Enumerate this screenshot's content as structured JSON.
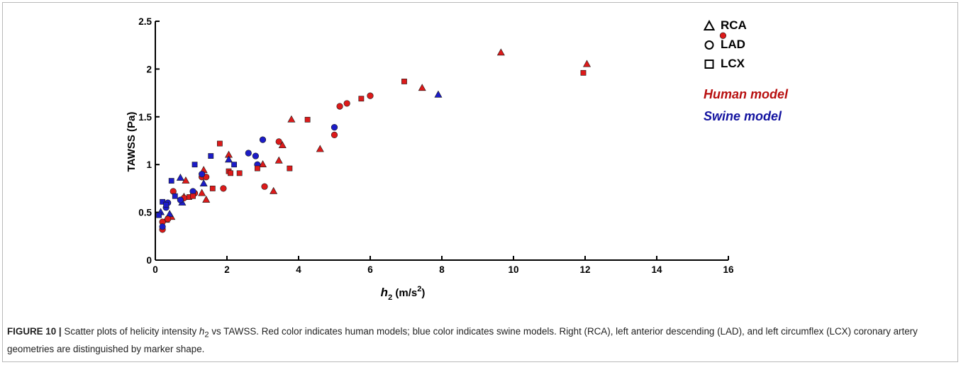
{
  "figure": {
    "caption_label": "FIGURE 10 |",
    "caption_text_1": " Scatter plots of helicity intensity ",
    "caption_h": "h",
    "caption_sub": "2",
    "caption_text_2": " vs TAWSS. Red color indicates human models; blue color indicates swine models. Right (RCA), left anterior descending (LAD), and left circumflex (LCX) coronary artery geometries are distinguished by marker shape."
  },
  "legend": {
    "shapes": [
      {
        "label": "RCA",
        "marker": "triangle"
      },
      {
        "label": "LAD",
        "marker": "circle"
      },
      {
        "label": "LCX",
        "marker": "square"
      }
    ],
    "models": [
      {
        "label": "Human model",
        "color": "#cc1111"
      },
      {
        "label": "Swine model",
        "color": "#1414b4"
      }
    ]
  },
  "chart_data": {
    "type": "scatter",
    "xlabel_main": "h",
    "xlabel_sub": "2",
    "xlabel_units": " (m/s",
    "xlabel_sup": "2",
    "xlabel_close": ")",
    "ylabel": "TAWSS (Pa)",
    "xlim": [
      0,
      16
    ],
    "ylim": [
      0,
      2.5
    ],
    "xticks": [
      0,
      2,
      4,
      6,
      8,
      10,
      12,
      14,
      16
    ],
    "yticks": [
      0,
      0.5,
      1,
      1.5,
      2,
      2.5
    ],
    "xtick_labels": [
      "0",
      "2",
      "4",
      "6",
      "8",
      "10",
      "12",
      "14",
      "16"
    ],
    "ytick_labels": [
      "0",
      "0.5",
      "1",
      "1.5",
      "2",
      "2.5"
    ],
    "grid": false,
    "colors": {
      "human": "#dd1a1a",
      "swine": "#1c1cc8"
    },
    "series": [
      {
        "name": "RCA",
        "model": "human",
        "marker": "triangle",
        "points": [
          [
            0.3,
            0.42
          ],
          [
            0.45,
            0.45
          ],
          [
            0.8,
            0.66
          ],
          [
            0.85,
            0.83
          ],
          [
            1.3,
            0.7
          ],
          [
            1.35,
            0.94
          ],
          [
            1.42,
            0.63
          ],
          [
            2.05,
            1.1
          ],
          [
            3.0,
            1.0
          ],
          [
            3.3,
            0.72
          ],
          [
            3.45,
            1.04
          ],
          [
            3.55,
            1.2
          ],
          [
            3.8,
            1.47
          ],
          [
            4.6,
            1.16
          ],
          [
            7.45,
            1.8
          ],
          [
            9.65,
            2.17
          ],
          [
            12.05,
            2.05
          ]
        ]
      },
      {
        "name": "RCA",
        "model": "swine",
        "marker": "triangle",
        "points": [
          [
            0.15,
            0.5
          ],
          [
            0.4,
            0.48
          ],
          [
            0.7,
            0.86
          ],
          [
            0.75,
            0.6
          ],
          [
            1.35,
            0.8
          ],
          [
            2.05,
            1.05
          ],
          [
            7.9,
            1.73
          ]
        ]
      },
      {
        "name": "LAD",
        "model": "human",
        "marker": "circle",
        "points": [
          [
            0.2,
            0.32
          ],
          [
            0.2,
            0.4
          ],
          [
            0.35,
            0.43
          ],
          [
            0.5,
            0.72
          ],
          [
            0.8,
            0.65
          ],
          [
            1.1,
            0.7
          ],
          [
            1.3,
            0.87
          ],
          [
            1.42,
            0.87
          ],
          [
            1.9,
            0.75
          ],
          [
            3.05,
            0.77
          ],
          [
            3.45,
            1.24
          ],
          [
            5.0,
            1.31
          ],
          [
            5.15,
            1.61
          ],
          [
            5.35,
            1.64
          ],
          [
            6.0,
            1.72
          ],
          [
            15.85,
            2.35
          ]
        ]
      },
      {
        "name": "LAD",
        "model": "swine",
        "marker": "circle",
        "points": [
          [
            0.2,
            0.35
          ],
          [
            0.3,
            0.55
          ],
          [
            0.35,
            0.6
          ],
          [
            0.7,
            0.63
          ],
          [
            1.05,
            0.72
          ],
          [
            1.3,
            0.9
          ],
          [
            2.6,
            1.12
          ],
          [
            2.8,
            1.09
          ],
          [
            2.85,
            1.0
          ],
          [
            3.0,
            1.26
          ],
          [
            5.0,
            1.39
          ]
        ]
      },
      {
        "name": "LCX",
        "model": "human",
        "marker": "square",
        "points": [
          [
            0.95,
            0.66
          ],
          [
            1.05,
            0.67
          ],
          [
            1.6,
            0.75
          ],
          [
            1.8,
            1.22
          ],
          [
            2.05,
            0.93
          ],
          [
            2.1,
            0.91
          ],
          [
            2.35,
            0.91
          ],
          [
            2.85,
            0.96
          ],
          [
            3.75,
            0.96
          ],
          [
            4.25,
            1.47
          ],
          [
            5.75,
            1.69
          ],
          [
            6.95,
            1.87
          ],
          [
            11.95,
            1.96
          ]
        ]
      },
      {
        "name": "LCX",
        "model": "swine",
        "marker": "square",
        "points": [
          [
            0.1,
            0.47
          ],
          [
            0.2,
            0.61
          ],
          [
            0.3,
            0.58
          ],
          [
            0.45,
            0.83
          ],
          [
            0.55,
            0.67
          ],
          [
            1.1,
            1.0
          ],
          [
            1.55,
            1.09
          ],
          [
            2.2,
            1.0
          ]
        ]
      }
    ]
  }
}
